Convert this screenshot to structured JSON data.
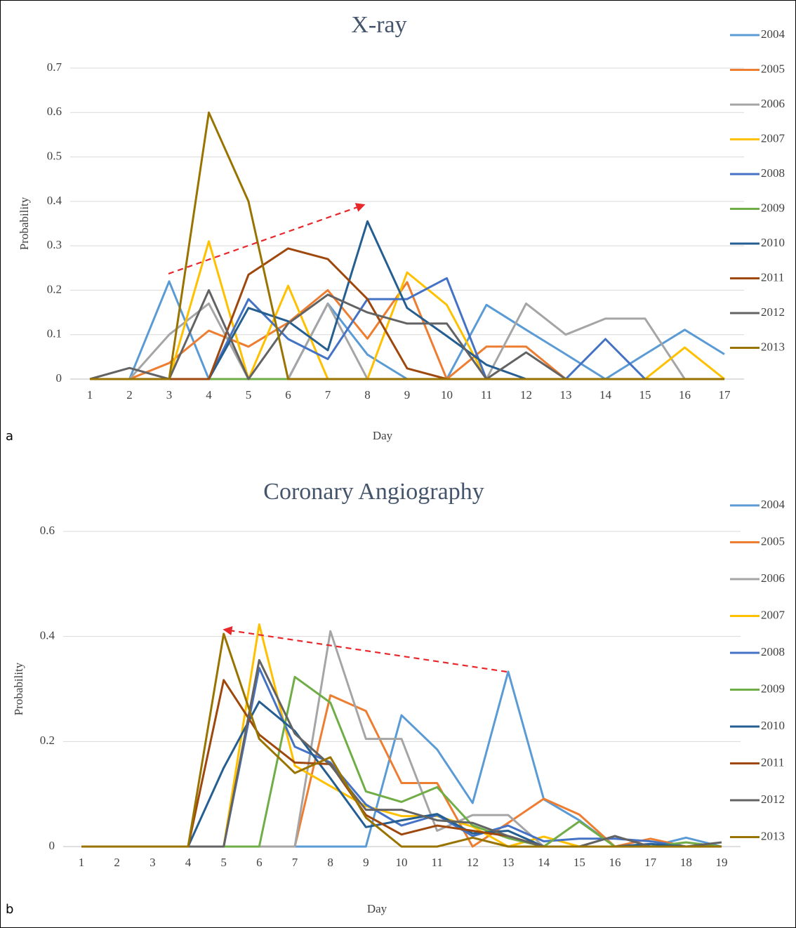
{
  "chart_data": [
    {
      "type": "line",
      "title": "X-ray",
      "x_label": "Day",
      "y_label": "Probability",
      "panel_label": "a",
      "categories": [
        1,
        2,
        3,
        4,
        5,
        6,
        7,
        8,
        9,
        10,
        11,
        12,
        13,
        14,
        15,
        16,
        17
      ],
      "ylim": [
        0,
        0.7
      ],
      "yticks": [
        0,
        0.1,
        0.2,
        0.3,
        0.4,
        0.5,
        0.6,
        0.7
      ],
      "grid": true,
      "legend": "right",
      "series": [
        {
          "name": "2004",
          "color": "#5b9bd5",
          "values": [
            0,
            0,
            0.22,
            0,
            0,
            0,
            0.17,
            0.055,
            0,
            0,
            0.167,
            0.111,
            0.056,
            0,
            0.056,
            0.111,
            0.056
          ]
        },
        {
          "name": "2005",
          "color": "#ed7d31",
          "values": [
            0,
            0,
            0.036,
            0.109,
            0.073,
            0.127,
            0.2,
            0.091,
            0.218,
            0,
            0.073,
            0.073,
            0,
            0,
            0,
            0,
            0
          ]
        },
        {
          "name": "2006",
          "color": "#a5a5a5",
          "values": [
            0,
            0,
            0.1,
            0.17,
            0,
            0,
            0.17,
            0,
            0,
            0,
            0,
            0.17,
            0.1,
            0.136,
            0.136,
            0,
            0
          ]
        },
        {
          "name": "2007",
          "color": "#ffc000",
          "values": [
            0,
            0,
            0,
            0.31,
            0,
            0.21,
            0,
            0,
            0.24,
            0.167,
            0,
            0,
            0,
            0,
            0,
            0.071,
            0
          ]
        },
        {
          "name": "2008",
          "color": "#4472c4",
          "values": [
            0,
            0,
            0,
            0,
            0.18,
            0.09,
            0.045,
            0.18,
            0.18,
            0.227,
            0,
            0,
            0,
            0.09,
            0,
            0,
            0
          ]
        },
        {
          "name": "2009",
          "color": "#70ad47",
          "values": [
            0,
            0,
            0,
            0,
            0,
            0,
            0,
            0,
            0,
            0,
            0,
            0,
            0,
            0,
            0,
            0,
            0
          ]
        },
        {
          "name": "2010",
          "color": "#255e91",
          "values": [
            0,
            0,
            0,
            0,
            0.16,
            0.13,
            0.065,
            0.355,
            0.16,
            0.097,
            0.032,
            0,
            0,
            0,
            0,
            0,
            0
          ]
        },
        {
          "name": "2011",
          "color": "#9e480e",
          "values": [
            0,
            0,
            0,
            0,
            0.235,
            0.294,
            0.27,
            0.18,
            0.024,
            0,
            0,
            0,
            0,
            0,
            0,
            0,
            0
          ]
        },
        {
          "name": "2012",
          "color": "#636363",
          "values": [
            0,
            0.025,
            0,
            0.2,
            0,
            0.125,
            0.19,
            0.15,
            0.125,
            0.125,
            0,
            0.06,
            0,
            0,
            0,
            0,
            0
          ]
        },
        {
          "name": "2013",
          "color": "#997300",
          "values": [
            0,
            0,
            0,
            0.6,
            0.4,
            0,
            0,
            0,
            0,
            0,
            0,
            0,
            0,
            0,
            0,
            0,
            0
          ]
        }
      ]
    },
    {
      "type": "line",
      "title": "Coronary Angiography",
      "x_label": "Day",
      "y_label": "Probability",
      "panel_label": "b",
      "categories": [
        1,
        2,
        3,
        4,
        5,
        6,
        7,
        8,
        9,
        10,
        11,
        12,
        13,
        14,
        15,
        16,
        17,
        18,
        19
      ],
      "ylim": [
        0,
        0.6
      ],
      "yticks": [
        0,
        0.2,
        0.4,
        0.6
      ],
      "grid": true,
      "legend": "right",
      "series": [
        {
          "name": "2004",
          "color": "#5b9bd5",
          "values": [
            0,
            0,
            0,
            0,
            0,
            0,
            0,
            0,
            0,
            0.25,
            0.185,
            0.083,
            0.333,
            0.09,
            0.05,
            0,
            0,
            0.017,
            0
          ]
        },
        {
          "name": "2005",
          "color": "#ed7d31",
          "values": [
            0,
            0,
            0,
            0,
            0,
            0,
            0,
            0.288,
            0.258,
            0.121,
            0.121,
            0,
            0.045,
            0.091,
            0.061,
            0,
            0.015,
            0,
            0
          ]
        },
        {
          "name": "2006",
          "color": "#a5a5a5",
          "values": [
            0,
            0,
            0,
            0,
            0,
            0,
            0,
            0.41,
            0.205,
            0.205,
            0.03,
            0.06,
            0.06,
            0,
            0,
            0,
            0,
            0,
            0
          ]
        },
        {
          "name": "2007",
          "color": "#ffc000",
          "values": [
            0,
            0,
            0,
            0,
            0,
            0.423,
            0.154,
            0.115,
            0.077,
            0.058,
            0.058,
            0.038,
            0,
            0.019,
            0,
            0,
            0,
            0,
            0
          ]
        },
        {
          "name": "2008",
          "color": "#4472c4",
          "values": [
            0,
            0,
            0,
            0,
            0,
            0.34,
            0.19,
            0.16,
            0.08,
            0.04,
            0.06,
            0.02,
            0.04,
            0.01,
            0.015,
            0.015,
            0.01,
            0,
            0
          ]
        },
        {
          "name": "2009",
          "color": "#70ad47",
          "values": [
            0,
            0,
            0,
            0,
            0,
            0,
            0.323,
            0.274,
            0.105,
            0.085,
            0.113,
            0.04,
            0.016,
            0,
            0.048,
            0,
            0,
            0.008,
            0
          ]
        },
        {
          "name": "2010",
          "color": "#255e91",
          "values": [
            0,
            0,
            0,
            0,
            0.15,
            0.276,
            0.22,
            0.13,
            0.037,
            0.05,
            0.062,
            0.025,
            0.03,
            0,
            0,
            0,
            0.005,
            0,
            0
          ]
        },
        {
          "name": "2011",
          "color": "#9e480e",
          "values": [
            0,
            0,
            0,
            0,
            0.317,
            0.213,
            0.16,
            0.157,
            0.06,
            0.023,
            0.04,
            0.03,
            0.02,
            0,
            0,
            0,
            0,
            0,
            0
          ]
        },
        {
          "name": "2012",
          "color": "#636363",
          "values": [
            0,
            0,
            0,
            0,
            0,
            0.355,
            0.215,
            0.155,
            0.07,
            0.07,
            0.05,
            0.045,
            0.02,
            0,
            0,
            0.02,
            0,
            0,
            0.008
          ]
        },
        {
          "name": "2013",
          "color": "#997300",
          "values": [
            0,
            0,
            0,
            0,
            0.405,
            0.205,
            0.14,
            0.17,
            0.055,
            0,
            0,
            0.017,
            0,
            0,
            0,
            0,
            0,
            0,
            0
          ]
        }
      ]
    }
  ]
}
